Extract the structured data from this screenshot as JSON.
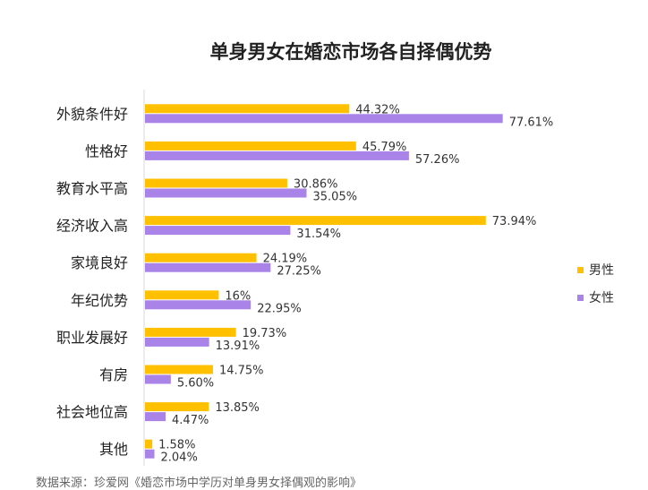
{
  "chart_data": {
    "type": "bar",
    "orientation": "horizontal",
    "title": "单身男女在婚恋市场各自择偶优势",
    "categories": [
      "外貌条件好",
      "性格好",
      "教育水平高",
      "经济收入高",
      "家境良好",
      "年纪优势",
      "职业发展好",
      "有房",
      "社会地位高",
      "其他"
    ],
    "series": [
      {
        "name": "男性",
        "color": "#FFC000",
        "values": [
          44.32,
          45.79,
          30.86,
          73.94,
          24.19,
          16,
          19.73,
          14.75,
          13.85,
          1.58
        ],
        "labels": [
          "44.32%",
          "45.79%",
          "30.86%",
          "73.94%",
          "24.19%",
          "16%",
          "19.73%",
          "14.75%",
          "13.85%",
          "1.58%"
        ]
      },
      {
        "name": "女性",
        "color": "#A983E8",
        "values": [
          77.61,
          57.26,
          35.05,
          31.54,
          27.25,
          22.95,
          13.91,
          5.6,
          4.47,
          2.04
        ],
        "labels": [
          "77.61%",
          "57.26%",
          "35.05%",
          "31.54%",
          "27.25%",
          "22.95%",
          "13.91%",
          "5.60%",
          "4.47%",
          "2.04%"
        ]
      }
    ],
    "legend_position": "right",
    "grid": false,
    "xlim": [
      0,
      100
    ]
  },
  "source": "数据来源：珍爱网《婚恋市场中学历对单身男女择偶观的影响》"
}
